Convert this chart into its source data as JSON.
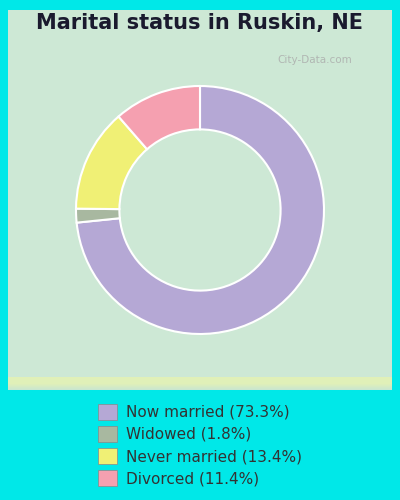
{
  "title": "Marital status in Ruskin, NE",
  "slices": [
    73.3,
    1.8,
    13.4,
    11.4
  ],
  "labels": [
    "Now married (73.3%)",
    "Widowed (1.8%)",
    "Never married (13.4%)",
    "Divorced (11.4%)"
  ],
  "colors": [
    "#b5a8d5",
    "#a8b8a0",
    "#f0f075",
    "#f5a0b0"
  ],
  "background_top": "#c8e8d8",
  "background_bottom": "#d8ecd0",
  "chart_bg_top": "#d0e8d8",
  "chart_bg_bottom": "#e0f0d8",
  "title_color": "#1a1a2e",
  "title_fontsize": 15,
  "legend_fontsize": 11,
  "watermark": "City-Data.com",
  "donut_width": 0.35,
  "start_angle": 90
}
